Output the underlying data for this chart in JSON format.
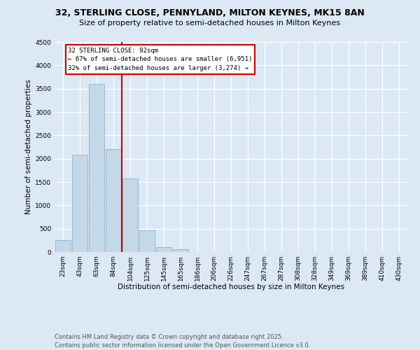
{
  "title_line1": "32, STERLING CLOSE, PENNYLAND, MILTON KEYNES, MK15 8AN",
  "title_line2": "Size of property relative to semi-detached houses in Milton Keynes",
  "bar_labels": [
    "23sqm",
    "43sqm",
    "63sqm",
    "84sqm",
    "104sqm",
    "125sqm",
    "145sqm",
    "165sqm",
    "186sqm",
    "206sqm",
    "226sqm",
    "247sqm",
    "267sqm",
    "287sqm",
    "308sqm",
    "328sqm",
    "349sqm",
    "369sqm",
    "389sqm",
    "410sqm",
    "430sqm"
  ],
  "bar_values": [
    250,
    2080,
    3600,
    2200,
    1580,
    460,
    100,
    55,
    0,
    0,
    0,
    0,
    0,
    0,
    0,
    0,
    0,
    0,
    0,
    0,
    0
  ],
  "bar_color": "#c5d8e8",
  "bar_edge_color": "#7aaac8",
  "highlight_line_color": "#cc0000",
  "annotation_title": "32 STERLING CLOSE: 92sqm",
  "annotation_line1": "← 67% of semi-detached houses are smaller (6,951)",
  "annotation_line2": "32% of semi-detached houses are larger (3,274) →",
  "annotation_box_color": "#cc0000",
  "xlabel": "Distribution of semi-detached houses by size in Milton Keynes",
  "ylabel": "Number of semi-detached properties",
  "ylim": [
    0,
    4500
  ],
  "yticks": [
    0,
    500,
    1000,
    1500,
    2000,
    2500,
    3000,
    3500,
    4000,
    4500
  ],
  "footnote_line1": "Contains HM Land Registry data © Crown copyright and database right 2025.",
  "footnote_line2": "Contains public sector information licensed under the Open Government Licence v3.0.",
  "bg_color": "#dce9f5",
  "plot_bg_color": "#dce9f5",
  "grid_color": "#ffffff",
  "title_fontsize": 9,
  "subtitle_fontsize": 8,
  "axis_label_fontsize": 7.5,
  "tick_fontsize": 6.5,
  "footnote_fontsize": 6.0
}
